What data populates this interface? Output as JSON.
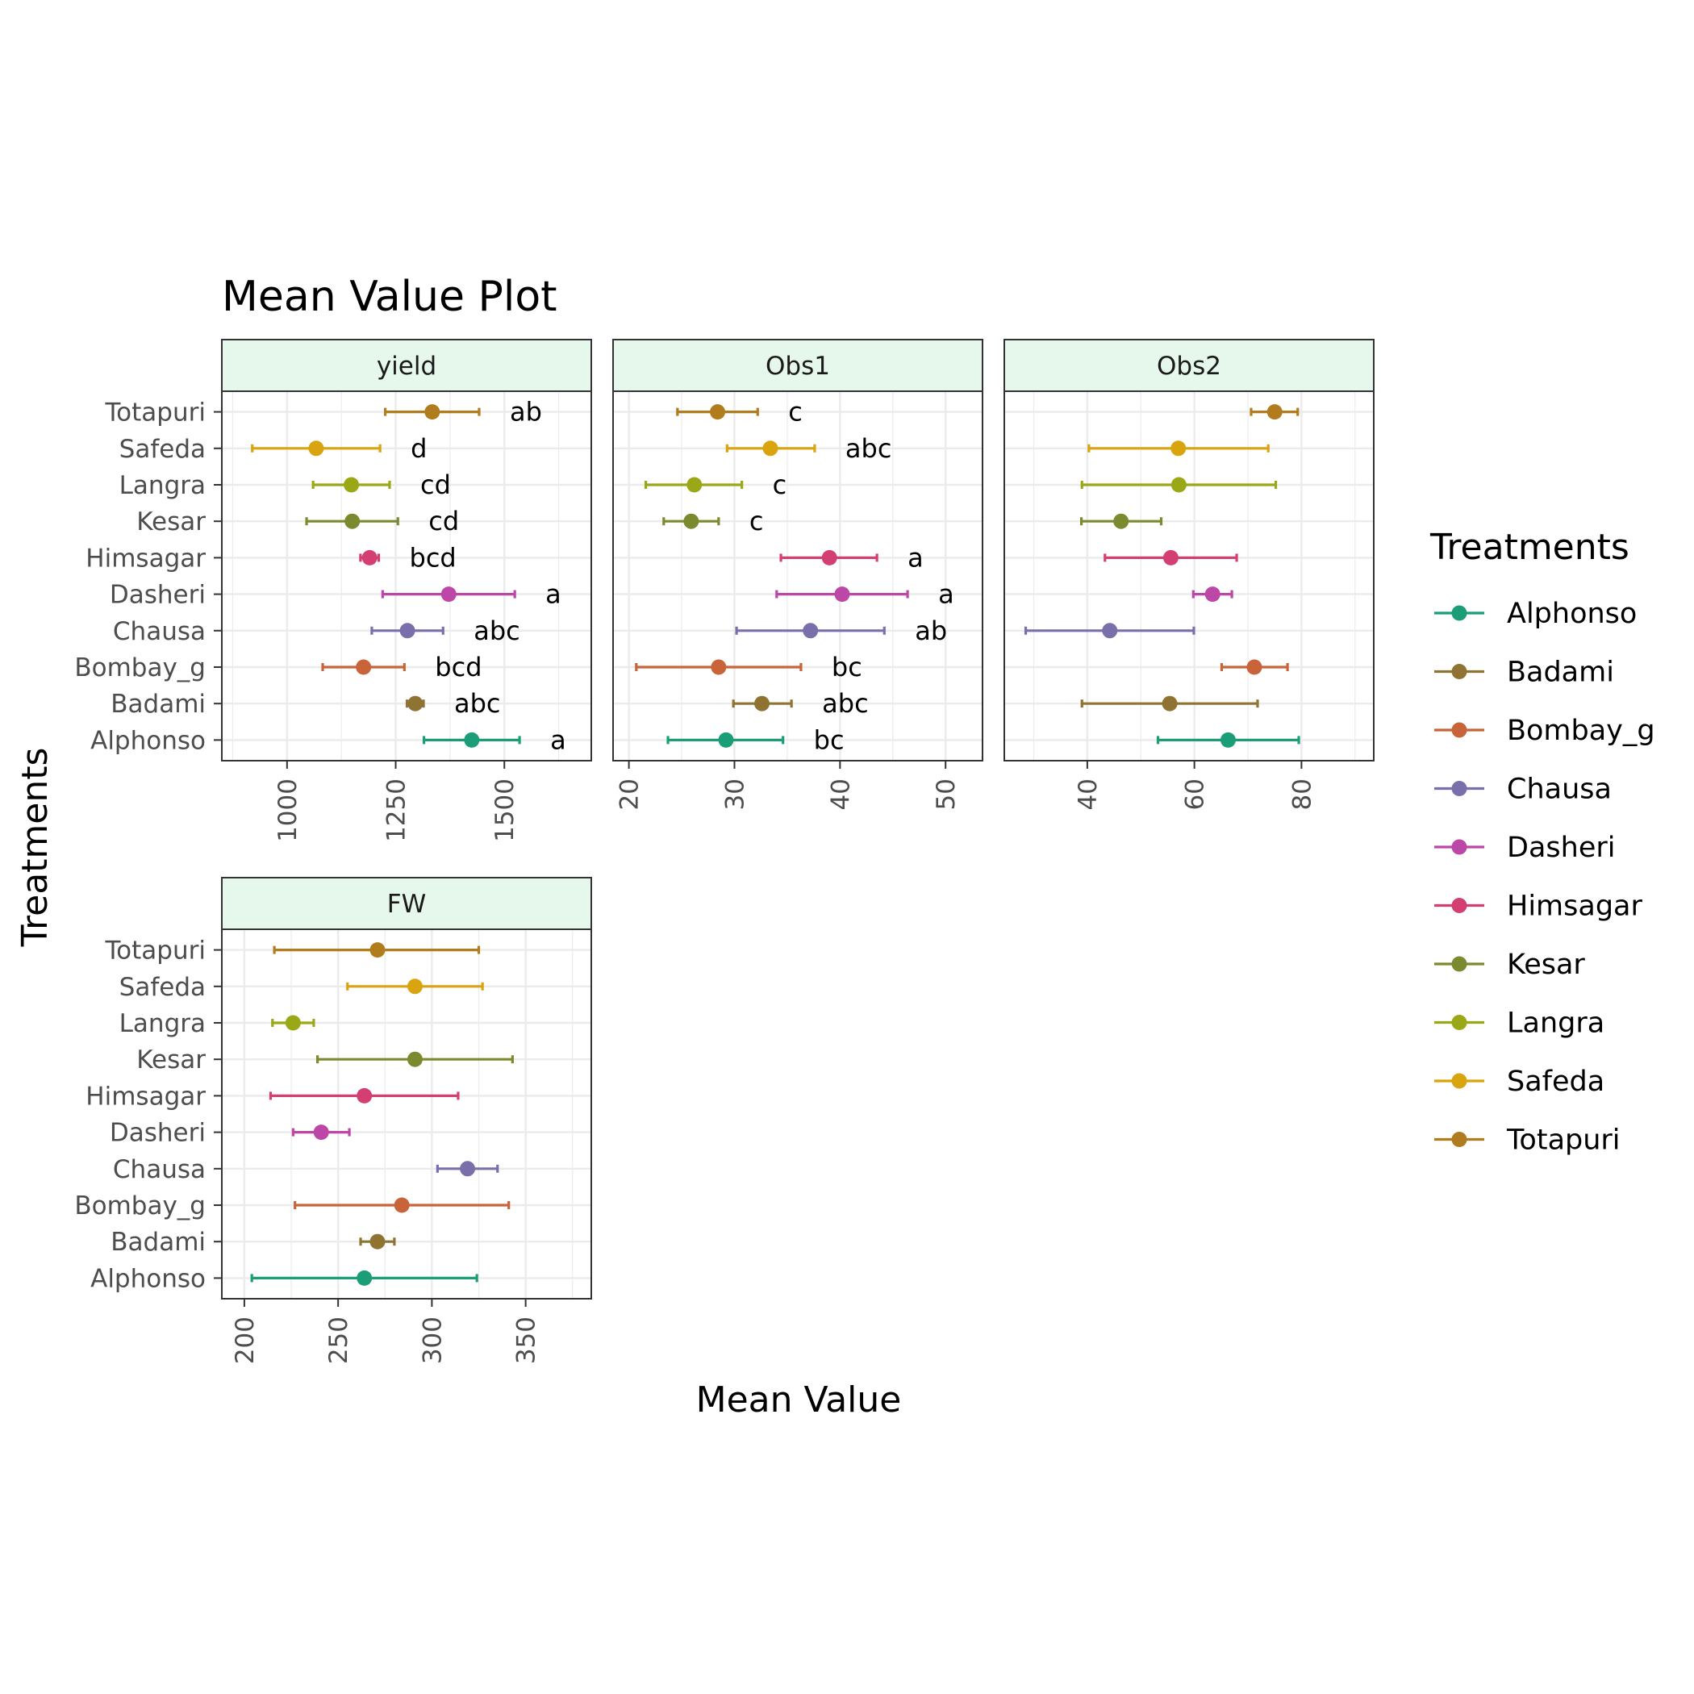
{
  "chart_data": {
    "type": "errorbar-dot (faceted)",
    "title": "Mean Value Plot",
    "xlabel": "Mean Value",
    "ylabel": "Treatments",
    "categories": [
      "Alphonso",
      "Badami",
      "Bombay_g",
      "Chausa",
      "Dasheri",
      "Himsagar",
      "Kesar",
      "Langra",
      "Safeda",
      "Totapuri"
    ],
    "legend": {
      "title": "Treatments",
      "placement": "right",
      "items": [
        {
          "name": "Alphonso",
          "color": "#1b9e77"
        },
        {
          "name": "Badami",
          "color": "#8f7332"
        },
        {
          "name": "Bombay_g",
          "color": "#c9643a"
        },
        {
          "name": "Chausa",
          "color": "#7b6fab"
        },
        {
          "name": "Dasheri",
          "color": "#bc47a6"
        },
        {
          "name": "Himsagar",
          "color": "#d33f73"
        },
        {
          "name": "Kesar",
          "color": "#7c8a2f"
        },
        {
          "name": "Langra",
          "color": "#9aa818"
        },
        {
          "name": "Safeda",
          "color": "#d9a40f"
        },
        {
          "name": "Totapuri",
          "color": "#b07c1e"
        }
      ]
    },
    "grid": true,
    "panels": [
      {
        "name": "yield",
        "xlim": [
          850,
          1700
        ],
        "xticks": [
          1000,
          1250,
          1500
        ],
        "rows": [
          {
            "mean": 1425,
            "low": 1315,
            "high": 1535,
            "letter": "a"
          },
          {
            "mean": 1295,
            "low": 1276,
            "high": 1314,
            "letter": "abc"
          },
          {
            "mean": 1176,
            "low": 1082,
            "high": 1270,
            "letter": "bcd"
          },
          {
            "mean": 1277,
            "low": 1195,
            "high": 1359,
            "letter": "abc"
          },
          {
            "mean": 1372,
            "low": 1220,
            "high": 1524,
            "letter": "a"
          },
          {
            "mean": 1190,
            "low": 1169,
            "high": 1211,
            "letter": "bcd"
          },
          {
            "mean": 1150,
            "low": 1045,
            "high": 1255,
            "letter": "cd"
          },
          {
            "mean": 1148,
            "low": 1060,
            "high": 1236,
            "letter": "cd"
          },
          {
            "mean": 1067,
            "low": 920,
            "high": 1214,
            "letter": "d"
          },
          {
            "mean": 1334,
            "low": 1226,
            "high": 1442,
            "letter": "ab"
          }
        ]
      },
      {
        "name": "Obs1",
        "xlim": [
          18.5,
          53.5
        ],
        "xticks": [
          20,
          30,
          40,
          50
        ],
        "rows": [
          {
            "mean": 29.2,
            "low": 23.7,
            "high": 34.6,
            "letter": "bc"
          },
          {
            "mean": 32.6,
            "low": 29.9,
            "high": 35.4,
            "letter": "abc"
          },
          {
            "mean": 28.5,
            "low": 20.7,
            "high": 36.3,
            "letter": "bc"
          },
          {
            "mean": 37.2,
            "low": 30.2,
            "high": 44.2,
            "letter": "ab"
          },
          {
            "mean": 40.2,
            "low": 34.0,
            "high": 46.4,
            "letter": "a"
          },
          {
            "mean": 39.0,
            "low": 34.4,
            "high": 43.5,
            "letter": "a"
          },
          {
            "mean": 25.9,
            "low": 23.3,
            "high": 28.5,
            "letter": "c"
          },
          {
            "mean": 26.2,
            "low": 21.6,
            "high": 30.7,
            "letter": "c"
          },
          {
            "mean": 33.4,
            "low": 29.3,
            "high": 37.6,
            "letter": "abc"
          },
          {
            "mean": 28.4,
            "low": 24.6,
            "high": 32.2,
            "letter": "c"
          }
        ]
      },
      {
        "name": "Obs2",
        "xlim": [
          24.5,
          93.5
        ],
        "xticks": [
          40,
          60,
          80
        ],
        "rows": [
          {
            "mean": 66.3,
            "low": 53.2,
            "high": 79.5,
            "letter": ""
          },
          {
            "mean": 55.4,
            "low": 39.0,
            "high": 71.8,
            "letter": ""
          },
          {
            "mean": 71.2,
            "low": 65.1,
            "high": 77.4,
            "letter": ""
          },
          {
            "mean": 44.2,
            "low": 28.5,
            "high": 59.9,
            "letter": ""
          },
          {
            "mean": 63.4,
            "low": 59.8,
            "high": 67.0,
            "letter": ""
          },
          {
            "mean": 55.6,
            "low": 43.3,
            "high": 67.9,
            "letter": ""
          },
          {
            "mean": 46.3,
            "low": 38.9,
            "high": 53.8,
            "letter": ""
          },
          {
            "mean": 57.1,
            "low": 39.0,
            "high": 75.2,
            "letter": ""
          },
          {
            "mean": 57.0,
            "low": 40.3,
            "high": 73.8,
            "letter": ""
          },
          {
            "mean": 75.0,
            "low": 70.6,
            "high": 79.3,
            "letter": ""
          }
        ]
      },
      {
        "name": "FW",
        "xlim": [
          188,
          385
        ],
        "xticks": [
          200,
          250,
          300,
          350
        ],
        "rows": [
          {
            "mean": 264,
            "low": 204,
            "high": 324,
            "letter": ""
          },
          {
            "mean": 271,
            "low": 262,
            "high": 280,
            "letter": ""
          },
          {
            "mean": 284,
            "low": 227,
            "high": 341,
            "letter": ""
          },
          {
            "mean": 319,
            "low": 303,
            "high": 335,
            "letter": ""
          },
          {
            "mean": 241,
            "low": 226,
            "high": 256,
            "letter": ""
          },
          {
            "mean": 264,
            "low": 214,
            "high": 314,
            "letter": ""
          },
          {
            "mean": 291,
            "low": 239,
            "high": 343,
            "letter": ""
          },
          {
            "mean": 226,
            "low": 215,
            "high": 237,
            "letter": ""
          },
          {
            "mean": 291,
            "low": 255,
            "high": 327,
            "letter": ""
          },
          {
            "mean": 271,
            "low": 216,
            "high": 325,
            "letter": ""
          }
        ]
      }
    ]
  }
}
